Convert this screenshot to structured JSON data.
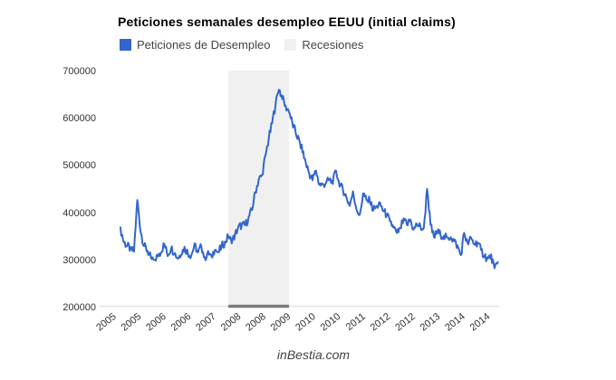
{
  "page": {
    "background": "#ffffff",
    "footer": "inBestia.com"
  },
  "chart": {
    "title": "Peticiones semanales desempleo EEUU (initial claims)",
    "legend": [
      {
        "label": "Peticiones de Desempleo",
        "color": "#3366cc"
      },
      {
        "label": "Recesiones",
        "color": "#f0f0f0"
      }
    ]
  },
  "chart_data": {
    "type": "line",
    "title": "Peticiones semanales desempleo EEUU (initial claims)",
    "series_name": "Peticiones de Desempleo",
    "unit": "weekly initial unemployment claims",
    "start_month": "2005-04",
    "interval": "monthly",
    "values_thousands": [
      365,
      336,
      328,
      322,
      316,
      425,
      358,
      328,
      318,
      302,
      296,
      308,
      315,
      332,
      308,
      324,
      314,
      302,
      312,
      325,
      313,
      308,
      331,
      313,
      328,
      302,
      315,
      304,
      322,
      313,
      327,
      336,
      348,
      336,
      352,
      368,
      372,
      372,
      388,
      404,
      442,
      468,
      478,
      518,
      556,
      588,
      628,
      661,
      642,
      624,
      614,
      588,
      568,
      552,
      528,
      504,
      482,
      468,
      488,
      458,
      458,
      462,
      468,
      462,
      488,
      456,
      448,
      432,
      414,
      442,
      408,
      392,
      440,
      424,
      424,
      404,
      412,
      418,
      402,
      394,
      378,
      368,
      354,
      364,
      384,
      372,
      384,
      362,
      374,
      368,
      364,
      451,
      372,
      346,
      358,
      352,
      348,
      344,
      348,
      338,
      328,
      308,
      356,
      332,
      344,
      332,
      336,
      318,
      308,
      300,
      308,
      278,
      296
    ],
    "recession_band": {
      "label": "Recesiones",
      "start": "2007-12",
      "end": "2009-06"
    },
    "ylim": [
      200000,
      700000
    ],
    "y_ticks": [
      "700000",
      "600000",
      "500000",
      "400000",
      "300000",
      "200000"
    ],
    "x_ticks": [
      "2005",
      "2005",
      "2006",
      "2006",
      "2007",
      "2008",
      "2008",
      "2009",
      "2010",
      "2010",
      "2011",
      "2012",
      "2012",
      "2013",
      "2014",
      "2014"
    ],
    "grid": "baseline-only",
    "legend_position": "top",
    "line_color": "#3366cc",
    "band_color": "#f0f0f0",
    "band_base_color": "#7a7a7a",
    "axis_color": "#e2e2e2",
    "noise_amplitude": 9000
  }
}
